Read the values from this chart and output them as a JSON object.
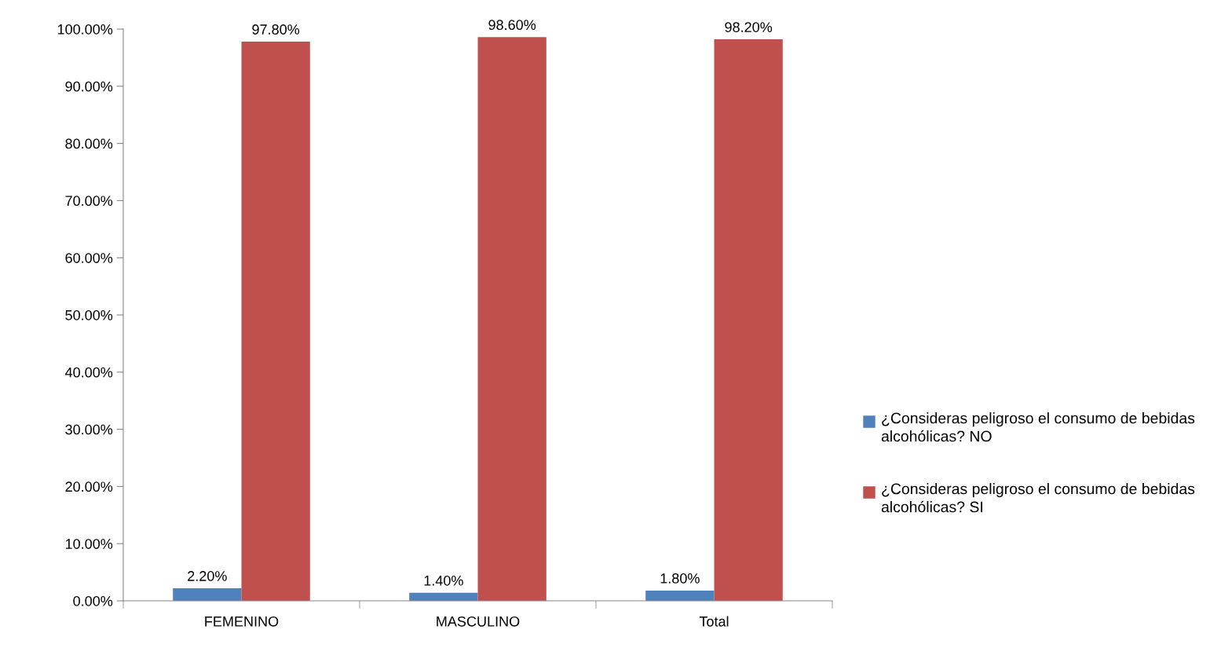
{
  "chart_data": {
    "type": "bar",
    "categories": [
      "FEMENINO",
      "MASCULINO",
      "Total"
    ],
    "series": [
      {
        "name": "¿Consideras peligroso el consumo de bebidas alcohólicas? NO",
        "color": "#4f81bd",
        "values": [
          2.2,
          1.4,
          1.8
        ],
        "value_labels": [
          "2.20%",
          "1.40%",
          "1.80%"
        ]
      },
      {
        "name": "¿Consideras peligroso el consumo de bebidas alcohólicas? SI",
        "color": "#c0504d",
        "values": [
          97.8,
          98.6,
          98.2
        ],
        "value_labels": [
          "97.80%",
          "98.60%",
          "98.20%"
        ]
      }
    ],
    "ylim": [
      0,
      100
    ],
    "yticks": [
      {
        "value": 0,
        "label": "0.00%"
      },
      {
        "value": 10,
        "label": "10.00%"
      },
      {
        "value": 20,
        "label": "20.00%"
      },
      {
        "value": 30,
        "label": "30.00%"
      },
      {
        "value": 40,
        "label": "40.00%"
      },
      {
        "value": 50,
        "label": "50.00%"
      },
      {
        "value": 60,
        "label": "60.00%"
      },
      {
        "value": 70,
        "label": "70.00%"
      },
      {
        "value": 80,
        "label": "80.00%"
      },
      {
        "value": 90,
        "label": "90.00%"
      },
      {
        "value": 100,
        "label": "100.00%"
      }
    ],
    "legend": "right",
    "grid": false
  }
}
